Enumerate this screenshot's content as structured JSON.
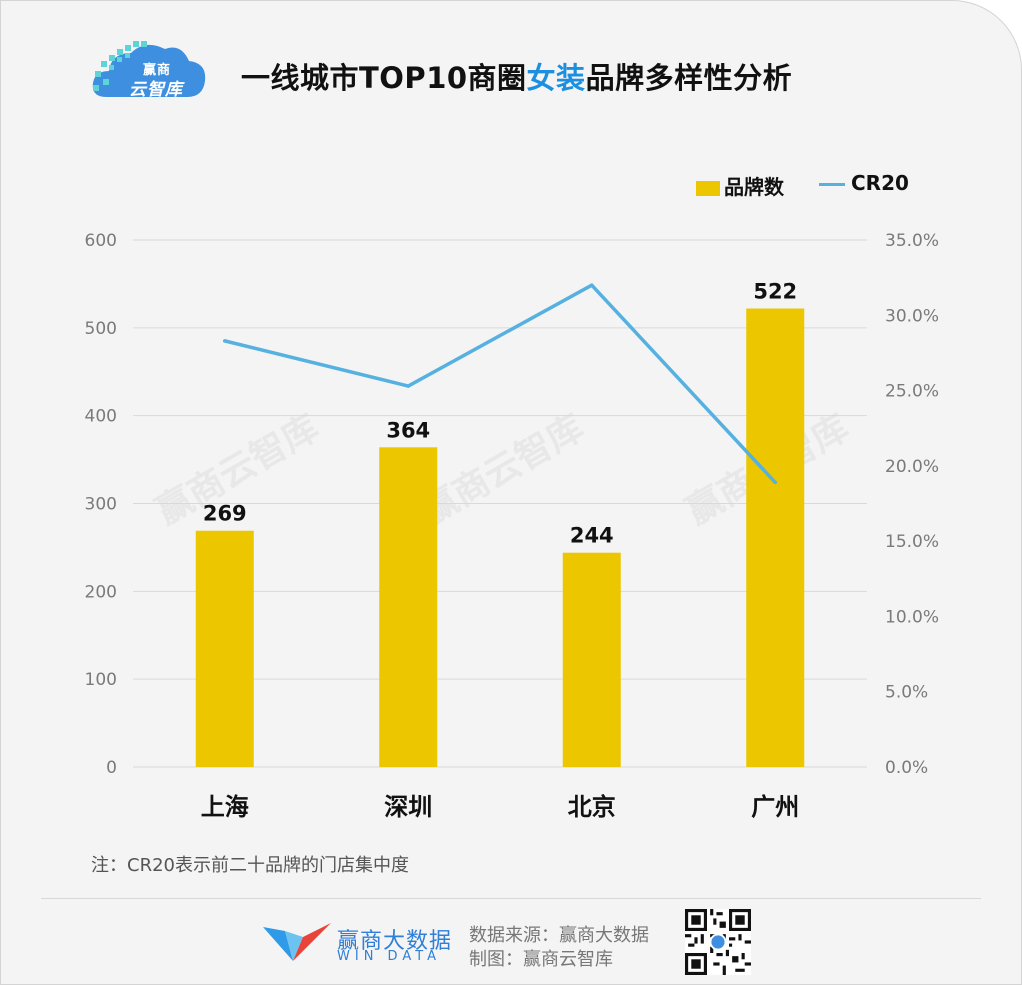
{
  "header": {
    "logo_line1": "赢商",
    "logo_line2": "云智库",
    "title_before": "一线城市TOP10商圈",
    "title_highlight": "女装",
    "title_after": "品牌多样性分析"
  },
  "watermark": "赢商云智库",
  "colors": {
    "bar": "#ecc700",
    "line": "#56b1e0",
    "highlight": "#1c8fe0"
  },
  "chart_data": {
    "type": "bar",
    "categories": [
      "上海",
      "深圳",
      "北京",
      "广州"
    ],
    "series": [
      {
        "name": "品牌数",
        "type": "bar",
        "axis": "left",
        "values": [
          269,
          364,
          244,
          522
        ],
        "labels": [
          "269",
          "364",
          "244",
          "522"
        ]
      },
      {
        "name": "CR20",
        "type": "line",
        "axis": "right",
        "values": [
          0.283,
          0.253,
          0.32,
          0.189
        ]
      }
    ],
    "y_left": {
      "ylim": [
        0,
        600
      ],
      "ticks": [
        "0",
        "100",
        "200",
        "300",
        "400",
        "500",
        "600"
      ]
    },
    "y_right": {
      "ylim": [
        0,
        0.35
      ],
      "ticks": [
        "0.0%",
        "5.0%",
        "10.0%",
        "15.0%",
        "20.0%",
        "25.0%",
        "30.0%",
        "35.0%"
      ]
    },
    "grid": true,
    "legend": "top-right"
  },
  "footer": {
    "note": "注：CR20表示前二十品牌的门店集中度",
    "brand_cn": "赢商大数据",
    "brand_en": "WIN DATA",
    "source": "数据来源：赢商大数据",
    "made_by": "制图：赢商云智库"
  }
}
